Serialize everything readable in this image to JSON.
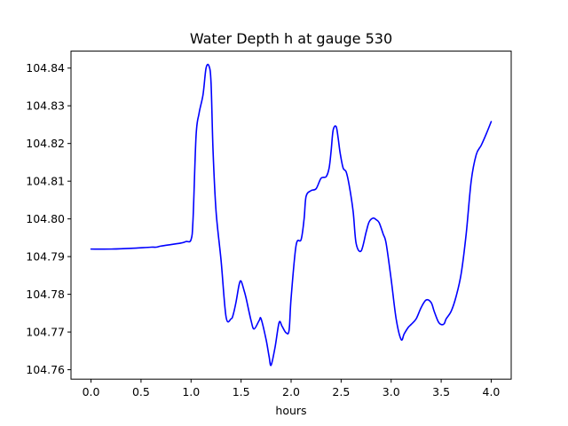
{
  "chart_data": {
    "type": "line",
    "title": "Water Depth h at gauge 530",
    "xlabel": "hours",
    "ylabel": "",
    "xlim": [
      -0.2,
      4.2
    ],
    "ylim": [
      104.7575,
      104.8445
    ],
    "xticks": [
      0.0,
      0.5,
      1.0,
      1.5,
      2.0,
      2.5,
      3.0,
      3.5,
      4.0
    ],
    "xtick_labels": [
      "0.0",
      "0.5",
      "1.0",
      "1.5",
      "2.0",
      "2.5",
      "3.0",
      "3.5",
      "4.0"
    ],
    "yticks": [
      104.76,
      104.77,
      104.78,
      104.79,
      104.8,
      104.81,
      104.82,
      104.83,
      104.84
    ],
    "ytick_labels": [
      "104.76",
      "104.77",
      "104.78",
      "104.79",
      "104.80",
      "104.81",
      "104.82",
      "104.83",
      "104.84"
    ],
    "grid": false,
    "series": [
      {
        "color": "#0000ff",
        "x": [
          0.0,
          0.2,
          0.4,
          0.6,
          0.65,
          0.7,
          0.8,
          0.9,
          0.95,
          1.0,
          1.02,
          1.05,
          1.08,
          1.12,
          1.15,
          1.18,
          1.2,
          1.22,
          1.25,
          1.3,
          1.35,
          1.4,
          1.42,
          1.45,
          1.48,
          1.5,
          1.53,
          1.55,
          1.6,
          1.63,
          1.68,
          1.7,
          1.75,
          1.78,
          1.8,
          1.84,
          1.88,
          1.91,
          1.95,
          1.98,
          2.0,
          2.05,
          2.1,
          2.13,
          2.15,
          2.2,
          2.25,
          2.3,
          2.35,
          2.38,
          2.4,
          2.42,
          2.45,
          2.47,
          2.49,
          2.52,
          2.55,
          2.58,
          2.62,
          2.65,
          2.7,
          2.75,
          2.78,
          2.82,
          2.85,
          2.88,
          2.92,
          2.95,
          3.0,
          3.05,
          3.1,
          3.13,
          3.17,
          3.2,
          3.25,
          3.3,
          3.35,
          3.4,
          3.43,
          3.47,
          3.5,
          3.53,
          3.55,
          3.6,
          3.65,
          3.7,
          3.75,
          3.8,
          3.85,
          3.9,
          3.95,
          4.0
        ],
        "values": [
          104.792,
          104.792,
          104.7922,
          104.7925,
          104.7925,
          104.7928,
          104.7932,
          104.7936,
          104.794,
          104.7945,
          104.8,
          104.822,
          104.828,
          104.833,
          104.84,
          104.8405,
          104.836,
          104.818,
          104.802,
          104.789,
          104.774,
          104.7735,
          104.7745,
          104.778,
          104.7825,
          104.7835,
          104.781,
          104.779,
          104.773,
          104.7708,
          104.773,
          104.7735,
          104.768,
          104.7635,
          104.7612,
          104.766,
          104.7725,
          104.7715,
          104.7698,
          104.7705,
          104.779,
          104.793,
          104.7945,
          104.8,
          104.806,
          104.8075,
          104.808,
          104.8108,
          104.8112,
          104.8135,
          104.818,
          104.8235,
          104.8245,
          104.8215,
          104.8175,
          104.8135,
          104.8125,
          104.809,
          104.802,
          104.7935,
          104.7915,
          104.7965,
          104.7992,
          104.8002,
          104.7998,
          104.799,
          104.796,
          104.7935,
          104.784,
          104.7735,
          104.768,
          104.7695,
          104.7712,
          104.772,
          104.7735,
          104.7765,
          104.7785,
          104.7778,
          104.7755,
          104.7728,
          104.772,
          104.7722,
          104.7735,
          104.7755,
          104.7795,
          104.7855,
          104.796,
          104.81,
          104.817,
          104.8195,
          104.8225,
          104.8258
        ]
      }
    ]
  }
}
